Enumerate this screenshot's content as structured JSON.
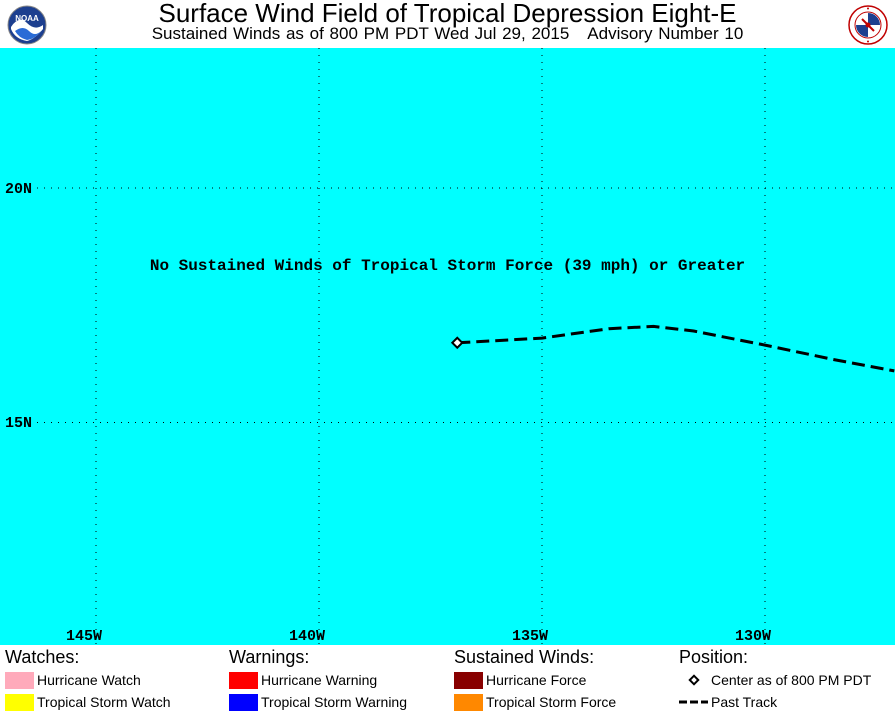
{
  "header": {
    "title": "Surface Wind Field of Tropical Depression Eight-E",
    "subtitle_left": "Sustained Winds as of 800 PM PDT Wed Jul 29, 2015",
    "subtitle_right": "Advisory Number 10",
    "logo_left_text": "NOAA",
    "logo_right_icon": "nws-logo-icon"
  },
  "map": {
    "background_color": "#00ffff",
    "notice": "No Sustained Winds of Tropical Storm Force (39 mph) or Greater",
    "lat_labels": [
      "20N",
      "15N"
    ],
    "lon_labels": [
      "145W",
      "140W",
      "135W",
      "130W"
    ],
    "storm_center": {
      "lon": -136.9,
      "lat": 16.7
    },
    "past_track": [
      {
        "lon": -136.9,
        "lat": 16.7
      },
      {
        "lon": -135.0,
        "lat": 16.8
      },
      {
        "lon": -133.5,
        "lat": 17.0
      },
      {
        "lon": -132.5,
        "lat": 17.05
      },
      {
        "lon": -131.6,
        "lat": 16.95
      },
      {
        "lon": -130.0,
        "lat": 16.65
      },
      {
        "lon": -128.5,
        "lat": 16.35
      },
      {
        "lon": -127.1,
        "lat": 16.1
      }
    ]
  },
  "legend": {
    "watches": {
      "heading": "Watches:",
      "items": [
        {
          "label": "Hurricane Watch",
          "color": "#ffaabb"
        },
        {
          "label": "Tropical Storm Watch",
          "color": "#ffff00"
        }
      ]
    },
    "warnings": {
      "heading": "Warnings:",
      "items": [
        {
          "label": "Hurricane Warning",
          "color": "#ff0000"
        },
        {
          "label": "Tropical Storm Warning",
          "color": "#0000ff"
        }
      ]
    },
    "winds": {
      "heading": "Sustained Winds:",
      "items": [
        {
          "label": "Hurricane Force",
          "color": "#880000"
        },
        {
          "label": "Tropical Storm Force",
          "color": "#ff8800"
        }
      ]
    },
    "position": {
      "heading": "Position:",
      "items": [
        {
          "label": "Center as of 800 PM PDT",
          "icon": "diamond-icon"
        },
        {
          "label": "Past Track",
          "icon": "dashed-line-icon"
        }
      ]
    }
  }
}
